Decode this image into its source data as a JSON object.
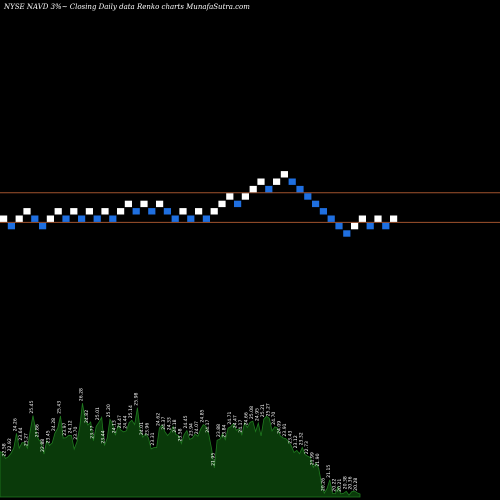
{
  "chart_data": {
    "type": "renko",
    "title": "NYSE NAVD 3%~  Closing Daily data  Renko  charts MunafaSutra.com",
    "colors": {
      "background": "#000000",
      "up_brick": "#ffffff",
      "down_brick": "#1f6fe0",
      "reference_line": "#a0522d",
      "volume_fill": "#0a3a0a",
      "volume_stroke": "#1f7a1f"
    },
    "bricks": [
      {
        "level": 0,
        "dir": "up"
      },
      {
        "level": -1,
        "dir": "down"
      },
      {
        "level": 0,
        "dir": "up"
      },
      {
        "level": 1,
        "dir": "up"
      },
      {
        "level": 0,
        "dir": "down"
      },
      {
        "level": -1,
        "dir": "down"
      },
      {
        "level": 0,
        "dir": "up"
      },
      {
        "level": 1,
        "dir": "up"
      },
      {
        "level": 0,
        "dir": "down"
      },
      {
        "level": 1,
        "dir": "up"
      },
      {
        "level": 0,
        "dir": "down"
      },
      {
        "level": 1,
        "dir": "up"
      },
      {
        "level": 0,
        "dir": "down"
      },
      {
        "level": 1,
        "dir": "up"
      },
      {
        "level": 0,
        "dir": "down"
      },
      {
        "level": 1,
        "dir": "up"
      },
      {
        "level": 2,
        "dir": "up"
      },
      {
        "level": 1,
        "dir": "down"
      },
      {
        "level": 2,
        "dir": "up"
      },
      {
        "level": 1,
        "dir": "down"
      },
      {
        "level": 2,
        "dir": "up"
      },
      {
        "level": 1,
        "dir": "down"
      },
      {
        "level": 0,
        "dir": "down"
      },
      {
        "level": 1,
        "dir": "up"
      },
      {
        "level": 0,
        "dir": "down"
      },
      {
        "level": 1,
        "dir": "up"
      },
      {
        "level": 0,
        "dir": "down"
      },
      {
        "level": 1,
        "dir": "up"
      },
      {
        "level": 2,
        "dir": "up"
      },
      {
        "level": 3,
        "dir": "up"
      },
      {
        "level": 2,
        "dir": "down"
      },
      {
        "level": 3,
        "dir": "up"
      },
      {
        "level": 4,
        "dir": "up"
      },
      {
        "level": 5,
        "dir": "up"
      },
      {
        "level": 4,
        "dir": "down"
      },
      {
        "level": 5,
        "dir": "up"
      },
      {
        "level": 6,
        "dir": "up"
      },
      {
        "level": 5,
        "dir": "down"
      },
      {
        "level": 4,
        "dir": "down"
      },
      {
        "level": 3,
        "dir": "down"
      },
      {
        "level": 2,
        "dir": "down"
      },
      {
        "level": 1,
        "dir": "down"
      },
      {
        "level": 0,
        "dir": "down"
      },
      {
        "level": -1,
        "dir": "down"
      },
      {
        "level": -2,
        "dir": "down"
      },
      {
        "level": -1,
        "dir": "up"
      },
      {
        "level": 0,
        "dir": "up"
      },
      {
        "level": -1,
        "dir": "down"
      },
      {
        "level": 0,
        "dir": "up"
      },
      {
        "level": -1,
        "dir": "down"
      },
      {
        "level": 0,
        "dir": "up"
      }
    ],
    "reference_levels": [
      3.5,
      -0.5
    ],
    "volume": {
      "ylim": [
        20,
        27.5
      ],
      "values": [
        23.04,
        22.95,
        22.58,
        22.69,
        22.92,
        23.27,
        24.26,
        23.27,
        23.64,
        23.63,
        23.27,
        24.45,
        25.45,
        24.5,
        23.86,
        23.67,
        22.88,
        23.78,
        23.45,
        23.62,
        24.28,
        24.6,
        25.43,
        23.95,
        23.97,
        24.13,
        24.12,
        23.21,
        23.7,
        24.67,
        26.28,
        25.2,
        24.82,
        25.02,
        23.77,
        24.73,
        25.01,
        25.34,
        23.44,
        23.94,
        25.2,
        24.89,
        24.13,
        24.82,
        24.47,
        24.36,
        24.44,
        24.98,
        25.14,
        24.85,
        25.98,
        24.51,
        24.01,
        24.25,
        23.96,
        23.22,
        23.31,
        23.31,
        24.62,
        24.83,
        24.37,
        24.12,
        24.33,
        24.73,
        24.18,
        24.12,
        23.58,
        24.18,
        24.45,
        23.86,
        23.94,
        24.21,
        24.07,
        24.54,
        24.85,
        24.71,
        24.17,
        23.23,
        21.95,
        23.8,
        23.88,
        24.23,
        23.84,
        24.61,
        24.71,
        24.92,
        24.47,
        24.57,
        24.17,
        24.97,
        24.66,
        25.0,
        25.08,
        24.39,
        24.95,
        24.09,
        25.21,
        25.41,
        25.27,
        24.43,
        24.7,
        24.62,
        24.09,
        23.96,
        23.91,
        23.72,
        23.43,
        22.98,
        23.12,
        22.9,
        23.32,
        22.85,
        22.73,
        22.64,
        21.99,
        22.28,
        21.9,
        20.89,
        20.26,
        20.56,
        21.15,
        20.25,
        20.22,
        20.71,
        20.21,
        20.25,
        20.38,
        20.13,
        20.36,
        20.4,
        20.28,
        20.2
      ]
    }
  }
}
